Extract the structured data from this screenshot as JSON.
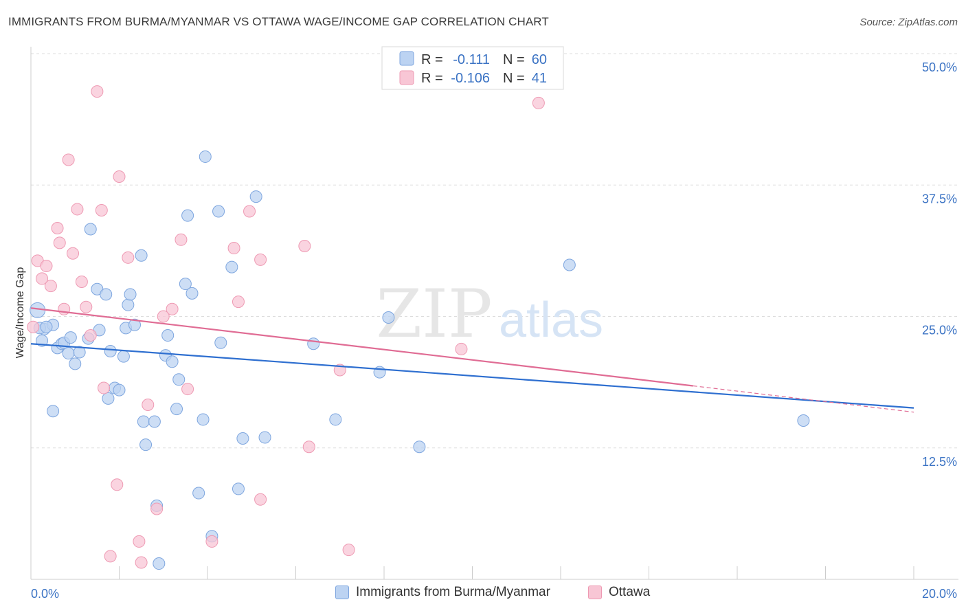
{
  "header": {
    "title": "IMMIGRANTS FROM BURMA/MYANMAR VS OTTAWA WAGE/INCOME GAP CORRELATION CHART",
    "source": "Source: ZipAtlas.com"
  },
  "watermark": {
    "zip": "ZIP",
    "atlas": "atlas"
  },
  "legend": {
    "rows": [
      {
        "r_label": "R =",
        "r_value": "-0.111",
        "n_label": "N =",
        "n_value": "60"
      },
      {
        "r_label": "R =",
        "r_value": "-0.106",
        "n_label": "N =",
        "n_value": "41"
      }
    ]
  },
  "bottom_legend": {
    "series1": "Immigrants from Burma/Myanmar",
    "series2": "Ottawa"
  },
  "colors": {
    "blue_fill": "#bcd3f2",
    "blue_stroke": "#7ea6df",
    "blue_line": "#2e6fd0",
    "pink_fill": "#f8c6d5",
    "pink_stroke": "#ee9ab3",
    "pink_line": "#e06c94",
    "tick_text": "#3b73c4",
    "grid": "#dddddd"
  },
  "chart_data": {
    "type": "scatter",
    "title": "IMMIGRANTS FROM BURMA/MYANMAR VS OTTAWA WAGE/INCOME GAP CORRELATION CHART",
    "xlabel": "",
    "ylabel": "Wage/Income Gap",
    "xlim": [
      0,
      20
    ],
    "ylim": [
      0,
      50
    ],
    "x_tick_labels": [
      "0.0%",
      "20.0%"
    ],
    "y_tick_labels": [
      "12.5%",
      "25.0%",
      "37.5%",
      "50.0%"
    ],
    "y_ticks": [
      12.5,
      25,
      37.5,
      50
    ],
    "grid": true,
    "series": [
      {
        "name": "Immigrants from Burma/Myanmar",
        "color": "blue",
        "r": -0.111,
        "n": 60,
        "trend": {
          "x": [
            0,
            20
          ],
          "y": [
            22.4,
            16.3
          ]
        },
        "points": [
          [
            0.15,
            25.6
          ],
          [
            0.25,
            22.7
          ],
          [
            0.3,
            23.8
          ],
          [
            0.5,
            24.2
          ],
          [
            0.6,
            22.0
          ],
          [
            0.7,
            22.4
          ],
          [
            0.75,
            22.5
          ],
          [
            0.85,
            21.5
          ],
          [
            0.9,
            23.0
          ],
          [
            1.0,
            20.5
          ],
          [
            1.1,
            21.6
          ],
          [
            1.3,
            22.9
          ],
          [
            1.35,
            33.3
          ],
          [
            1.5,
            27.6
          ],
          [
            1.55,
            23.7
          ],
          [
            1.7,
            27.1
          ],
          [
            1.75,
            17.2
          ],
          [
            1.8,
            21.7
          ],
          [
            1.9,
            18.2
          ],
          [
            2.0,
            18.0
          ],
          [
            2.1,
            21.2
          ],
          [
            2.15,
            23.9
          ],
          [
            2.2,
            26.1
          ],
          [
            2.25,
            27.1
          ],
          [
            2.35,
            24.2
          ],
          [
            2.5,
            30.8
          ],
          [
            2.55,
            15.0
          ],
          [
            2.6,
            12.8
          ],
          [
            2.8,
            15.0
          ],
          [
            2.85,
            7.0
          ],
          [
            2.9,
            1.5
          ],
          [
            3.05,
            21.3
          ],
          [
            3.1,
            23.2
          ],
          [
            3.2,
            20.7
          ],
          [
            3.3,
            16.2
          ],
          [
            3.35,
            19.0
          ],
          [
            3.5,
            28.1
          ],
          [
            3.55,
            34.6
          ],
          [
            3.65,
            27.2
          ],
          [
            3.8,
            8.2
          ],
          [
            3.9,
            15.2
          ],
          [
            3.95,
            40.2
          ],
          [
            4.1,
            4.1
          ],
          [
            4.25,
            35.0
          ],
          [
            4.3,
            22.5
          ],
          [
            4.55,
            29.7
          ],
          [
            4.7,
            8.6
          ],
          [
            4.8,
            13.4
          ],
          [
            5.1,
            36.4
          ],
          [
            5.3,
            13.5
          ],
          [
            6.4,
            22.4
          ],
          [
            6.9,
            15.2
          ],
          [
            7.9,
            19.7
          ],
          [
            8.1,
            24.9
          ],
          [
            8.8,
            12.6
          ],
          [
            12.2,
            29.9
          ],
          [
            0.5,
            16.0
          ],
          [
            0.2,
            23.9
          ],
          [
            0.35,
            24.0
          ],
          [
            17.5,
            15.1
          ]
        ]
      },
      {
        "name": "Ottawa",
        "color": "pink",
        "r": -0.106,
        "n": 41,
        "trend": {
          "x": [
            0,
            15
          ],
          "y": [
            25.8,
            18.4
          ]
        },
        "trend_dashed": {
          "x": [
            15,
            20
          ],
          "y": [
            18.4,
            15.9
          ]
        },
        "points": [
          [
            0.05,
            24.0
          ],
          [
            0.15,
            30.3
          ],
          [
            0.25,
            28.6
          ],
          [
            0.35,
            29.8
          ],
          [
            0.45,
            27.9
          ],
          [
            0.6,
            33.4
          ],
          [
            0.65,
            32.0
          ],
          [
            0.75,
            25.7
          ],
          [
            0.85,
            39.9
          ],
          [
            0.95,
            31.0
          ],
          [
            1.05,
            35.2
          ],
          [
            1.15,
            28.3
          ],
          [
            1.25,
            25.9
          ],
          [
            1.35,
            23.2
          ],
          [
            1.5,
            46.4
          ],
          [
            1.6,
            35.1
          ],
          [
            1.65,
            18.2
          ],
          [
            1.95,
            9.0
          ],
          [
            2.0,
            38.3
          ],
          [
            2.2,
            30.6
          ],
          [
            2.45,
            3.6
          ],
          [
            2.5,
            1.6
          ],
          [
            2.65,
            16.6
          ],
          [
            2.85,
            6.7
          ],
          [
            3.0,
            25.0
          ],
          [
            3.2,
            25.7
          ],
          [
            3.4,
            32.3
          ],
          [
            3.55,
            18.1
          ],
          [
            4.1,
            3.6
          ],
          [
            4.6,
            31.5
          ],
          [
            4.7,
            26.4
          ],
          [
            4.95,
            35.0
          ],
          [
            5.2,
            30.4
          ],
          [
            5.2,
            7.6
          ],
          [
            6.2,
            31.7
          ],
          [
            6.3,
            12.6
          ],
          [
            7.0,
            19.9
          ],
          [
            7.2,
            2.8
          ],
          [
            9.75,
            21.9
          ],
          [
            11.5,
            45.3
          ],
          [
            1.8,
            2.2
          ]
        ]
      }
    ]
  }
}
